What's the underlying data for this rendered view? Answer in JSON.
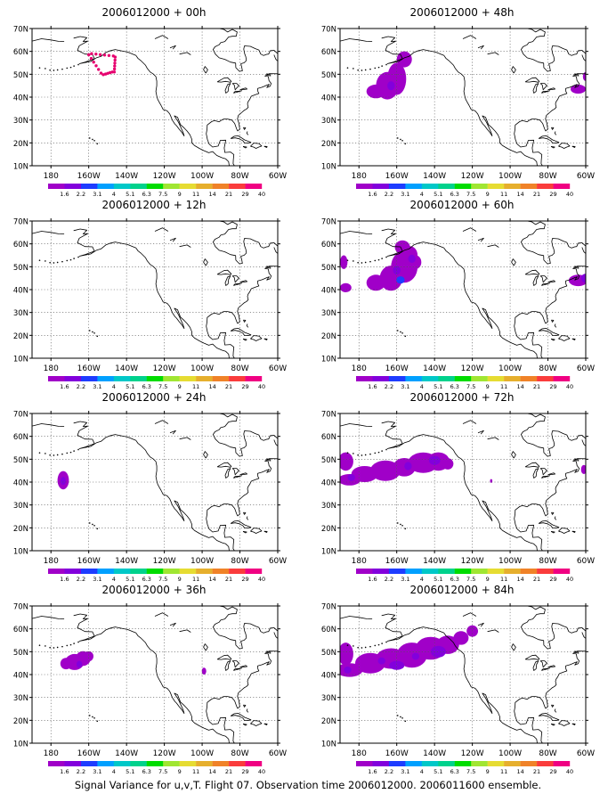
{
  "panels": [
    {
      "title": "2006012000 + 00h",
      "field": "h00"
    },
    {
      "title": "2006012000 + 48h",
      "field": "h48"
    },
    {
      "title": "2006012000 + 12h",
      "field": "h12"
    },
    {
      "title": "2006012000 + 60h",
      "field": "h60"
    },
    {
      "title": "2006012000 + 24h",
      "field": "h24"
    },
    {
      "title": "2006012000 + 72h",
      "field": "h72"
    },
    {
      "title": "2006012000 + 36h",
      "field": "h36"
    },
    {
      "title": "2006012000 + 84h",
      "field": "h84"
    }
  ],
  "lat_labels": [
    "10N",
    "20N",
    "30N",
    "40N",
    "50N",
    "60N",
    "70N"
  ],
  "lon_labels": [
    "180",
    "160W",
    "140W",
    "120W",
    "100W",
    "80W",
    "60W"
  ],
  "colorbar": {
    "labels": [
      "1.6",
      "2.2",
      "3.1",
      "4",
      "5.1",
      "6.3",
      "7.5",
      "9",
      "11",
      "14",
      "21",
      "29",
      "40"
    ],
    "colors": [
      "#a000c8",
      "#8200dc",
      "#1e3cff",
      "#00a0ff",
      "#00c8c8",
      "#00d28c",
      "#00dc00",
      "#a0e632",
      "#e6dc32",
      "#e6af2d",
      "#f08228",
      "#fa3c3c",
      "#f00082"
    ]
  },
  "footer": "Signal Variance for u,v,T. Flight 07. Observation time 2006012000. 2006011600 ensemble."
}
